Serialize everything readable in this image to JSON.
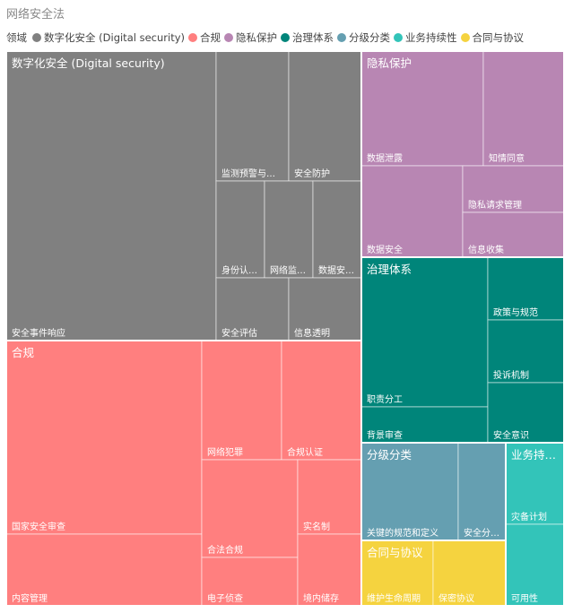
{
  "chart_data": {
    "type": "treemap",
    "title": "网络安全法",
    "legend_title": "领域",
    "legend_position": "top-left",
    "groups": [
      {
        "name": "数字化安全 (Digital security)",
        "color": "#808080",
        "children": [
          {
            "name": "安全事件响应"
          },
          {
            "name": "监测预警与…"
          },
          {
            "name": "安全防护"
          },
          {
            "name": "身份认…"
          },
          {
            "name": "网络监…"
          },
          {
            "name": "数据安…"
          },
          {
            "name": "安全评估"
          },
          {
            "name": "信息透明"
          }
        ]
      },
      {
        "name": "合规",
        "color": "#FF7F7F",
        "children": [
          {
            "name": "国家安全审查"
          },
          {
            "name": "内容管理"
          },
          {
            "name": "网络犯罪"
          },
          {
            "name": "合规认证"
          },
          {
            "name": "合法合规"
          },
          {
            "name": "实名制"
          },
          {
            "name": "电子侦查"
          },
          {
            "name": "境内储存"
          }
        ]
      },
      {
        "name": "隐私保护",
        "color": "#B886B3",
        "children": [
          {
            "name": "数据泄露"
          },
          {
            "name": "知情同意"
          },
          {
            "name": "数据安全"
          },
          {
            "name": "隐私请求管理"
          },
          {
            "name": "信息收集"
          }
        ]
      },
      {
        "name": "治理体系",
        "color": "#00857A",
        "children": [
          {
            "name": "职责分工"
          },
          {
            "name": "政策与规范"
          },
          {
            "name": "投诉机制"
          },
          {
            "name": "背景审查"
          },
          {
            "name": "安全意识"
          }
        ]
      },
      {
        "name": "分级分类",
        "color": "#659FB1",
        "children": [
          {
            "name": "关键的规范和定义"
          },
          {
            "name": "安全分…"
          }
        ]
      },
      {
        "name": "业务持续性",
        "color": "#33C4B9",
        "short_label": "业务持…",
        "children": [
          {
            "name": "灾备计划"
          },
          {
            "name": "可用性"
          }
        ]
      },
      {
        "name": "合同与协议",
        "color": "#F5D33F",
        "children": [
          {
            "name": "维护生命周期"
          },
          {
            "name": "保密协议"
          }
        ]
      }
    ]
  }
}
